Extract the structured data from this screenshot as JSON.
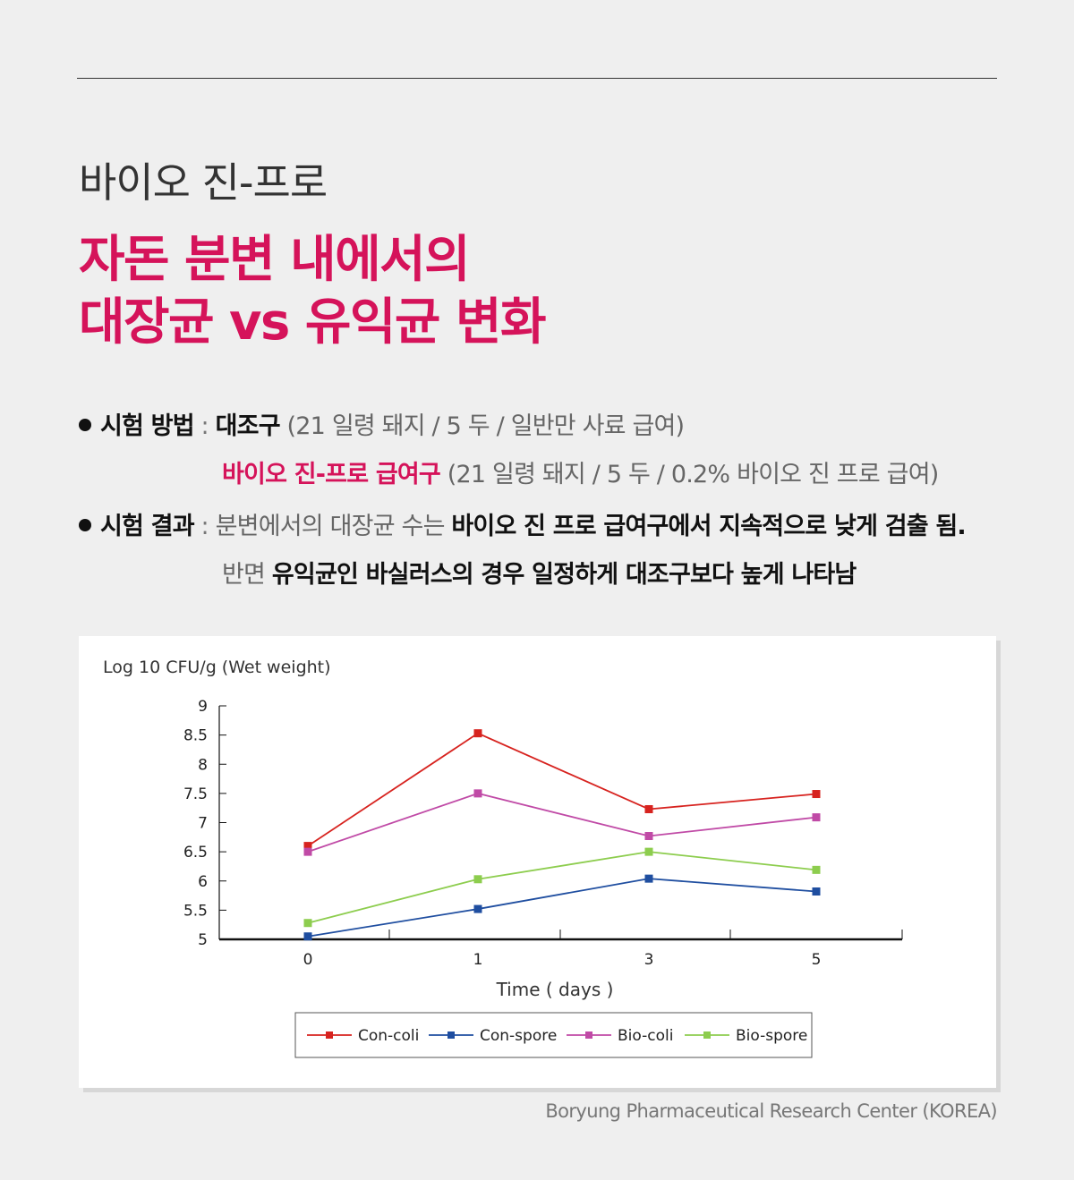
{
  "header": {
    "subtitle": "바이오 진-프로",
    "headline_line1": "자돈 분변 내에서의",
    "headline_line2": "대장균 vs 유익균 변화"
  },
  "bullets": [
    {
      "label": "시험 방법",
      "sep": " : ",
      "line1": {
        "a": "대조구",
        "b": " (21 일령 돼지 / 5 두 / 일반만 사료 급여)"
      },
      "line2": {
        "a": "바이오 진-프로 급여구",
        "b": " (21 일령 돼지 / 5 두 / 0.2% 바이오 진 프로 급여)"
      }
    },
    {
      "label": "시험 결과",
      "sep": " : ",
      "line1": {
        "a": "분변에서의 대장균 수는 ",
        "b": "바이오 진 프로 급여구에서 지속적으로 낮게 검출 됨."
      },
      "line2": {
        "a": "반면 ",
        "b": "유익균인 바실러스의 경우 일정하게 대조구보다 높게 나타남"
      }
    }
  ],
  "chart_data": {
    "type": "line",
    "ylabel": "Log 10 CFU/g (Wet weight)",
    "xlabel": "Time ( days )",
    "categories": [
      "0",
      "1",
      "3",
      "5"
    ],
    "ylim": [
      5,
      9
    ],
    "yticks": [
      "5",
      "5.5",
      "6",
      "6.5",
      "7",
      "7.5",
      "8",
      "8.5",
      "9"
    ],
    "legend_position": "bottom",
    "series": [
      {
        "name": "Con-coli",
        "color": "#d7231f",
        "values": [
          6.6,
          8.53,
          7.23,
          7.49
        ]
      },
      {
        "name": "Con-spore",
        "color": "#1f4ea0",
        "values": [
          5.05,
          5.52,
          6.04,
          5.82
        ]
      },
      {
        "name": "Bio-coli",
        "color": "#c04aa6",
        "values": [
          6.5,
          7.5,
          6.77,
          7.09
        ]
      },
      {
        "name": "Bio-spore",
        "color": "#8dcd4e",
        "values": [
          5.28,
          6.03,
          6.5,
          6.19
        ]
      }
    ]
  },
  "source": "Boryung Pharmaceutical Research Center (KOREA)"
}
